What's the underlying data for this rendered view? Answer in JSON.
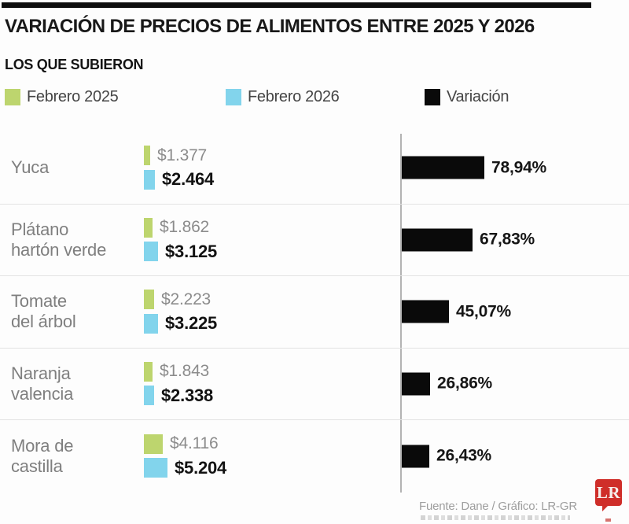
{
  "page": {
    "title": "VARIACIÓN DE PRECIOS DE ALIMENTOS ENTRE 2025 Y 2026",
    "subtitle": "LOS QUE SUBIERON"
  },
  "legend": [
    {
      "label": "Febrero 2025",
      "color": "#bdd56e"
    },
    {
      "label": "Febrero 2026",
      "color": "#82d4ec"
    },
    {
      "label": "Variación",
      "color": "#0a0a0a"
    }
  ],
  "chart_data": {
    "type": "bar",
    "orientation": "horizontal",
    "title": "VARIACIÓN DE PRECIOS DE ALIMENTOS ENTRE 2025 Y 2026",
    "subtitle": "LOS QUE SUBIERON",
    "categories": [
      "Yuca",
      "Plátano\nhartón verde",
      "Tomate\ndel árbol",
      "Naranja\nvalencia",
      "Mora de\ncastilla"
    ],
    "series": [
      {
        "name": "Febrero 2025",
        "color": "#bdd56e",
        "values": [
          1377,
          1862,
          2223,
          1843,
          4116
        ],
        "labels": [
          "$1.377",
          "$1.862",
          "$2.223",
          "$1.843",
          "$4.116"
        ]
      },
      {
        "name": "Febrero 2026",
        "color": "#82d4ec",
        "values": [
          2464,
          3125,
          3225,
          2338,
          5204
        ],
        "labels": [
          "$2.464",
          "$3.125",
          "$3.225",
          "$2.338",
          "$5.204"
        ]
      },
      {
        "name": "Variación",
        "color": "#0a0a0a",
        "unit": "%",
        "values": [
          78.94,
          67.83,
          45.07,
          26.86,
          26.43
        ],
        "labels": [
          "78,94%",
          "67,83%",
          "45,07%",
          "26,86%",
          "26,43%"
        ]
      }
    ],
    "currency": "COP",
    "grid": false,
    "legend_position": "top"
  },
  "footer": {
    "source": "Fuente: Dane / Gráfico: LR-GR",
    "logo_text": "LR"
  }
}
